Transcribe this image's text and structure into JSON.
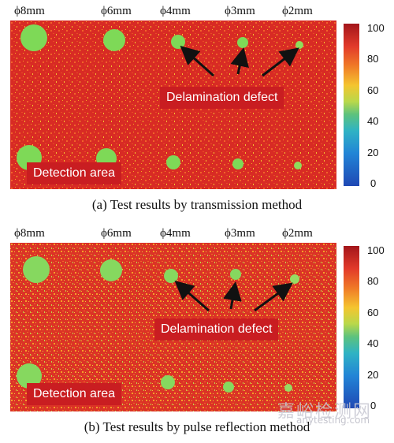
{
  "colors": {
    "background_red": "#d82b24",
    "defect_green": "#7ed957",
    "label_box": "#c91d21",
    "arrow": "#111111"
  },
  "size_labels": [
    "ϕ8mm",
    "ϕ6mm",
    "ϕ4mm",
    "ϕ3mm",
    "ϕ2mm"
  ],
  "colorbar_ticks": [
    "100",
    "80",
    "60",
    "40",
    "20",
    "0"
  ],
  "panel_a": {
    "delamination_label": "Delamination defect",
    "detection_label": "Detection area",
    "caption": "(a) Test results by transmission method"
  },
  "panel_b": {
    "delamination_label": "Delamination defect",
    "detection_label": "Detection area",
    "caption": "(b) Test results by pulse reflection method"
  },
  "watermark": {
    "chinese": "嘉峪检测网",
    "url": "anytesting.com"
  }
}
